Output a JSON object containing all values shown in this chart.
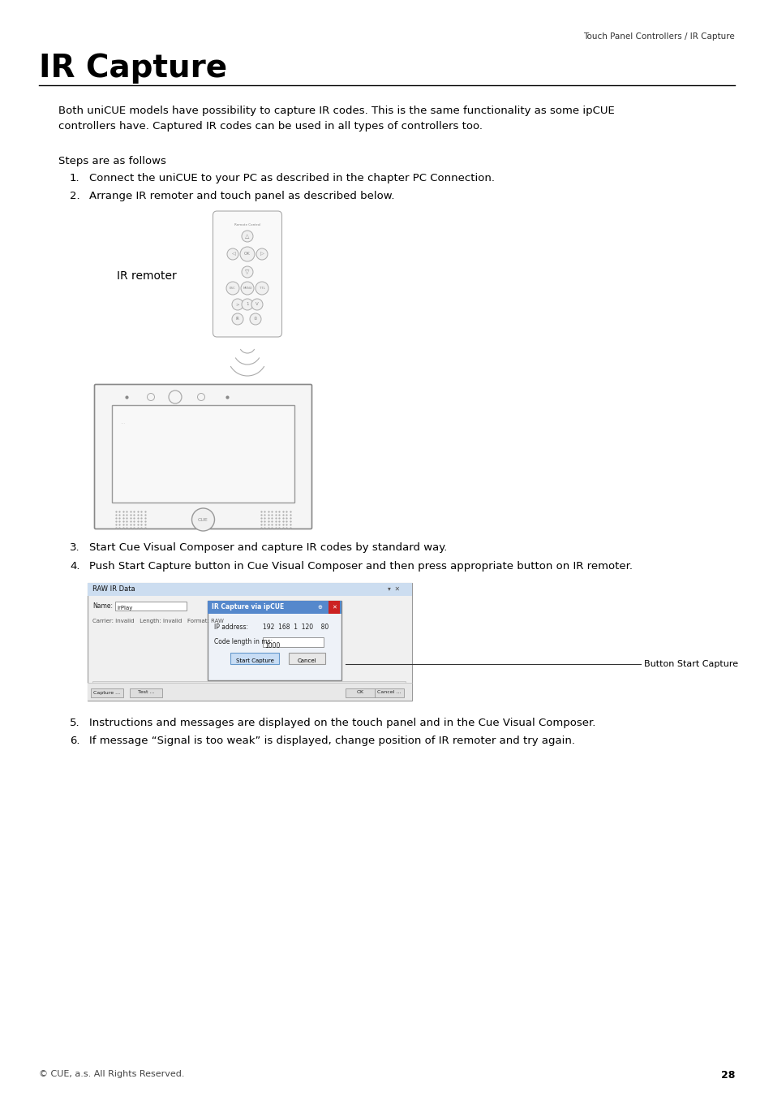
{
  "page_bg": "#ffffff",
  "header_text": "Touch Panel Controllers / IR Capture",
  "title": "IR Capture",
  "intro_text": "Both uniCUE models have possibility to capture IR codes. This is the same functionality as some ipCUE\ncontrollers have. Captured IR codes can be used in all types of controllers too.",
  "steps_label": "Steps are as follows",
  "step1": "Connect the uniCUE to your PC as described in the chapter PC Connection.",
  "step2": "Arrange IR remoter and touch panel as described below.",
  "step3": "Start Cue Visual Composer and capture IR codes by standard way.",
  "step4": "Push Start Capture button in Cue Visual Composer and then press appropriate button on IR remoter.",
  "step5": "Instructions and messages are displayed on the touch panel and in the Cue Visual Composer.",
  "step6": "If message “Signal is too weak” is displayed, change position of IR remoter and try again.",
  "ir_remoter_label": "IR remoter",
  "button_label": "Button Start Capture",
  "footer_text": "© CUE, a.s. All Rights Reserved.",
  "page_number": "28"
}
